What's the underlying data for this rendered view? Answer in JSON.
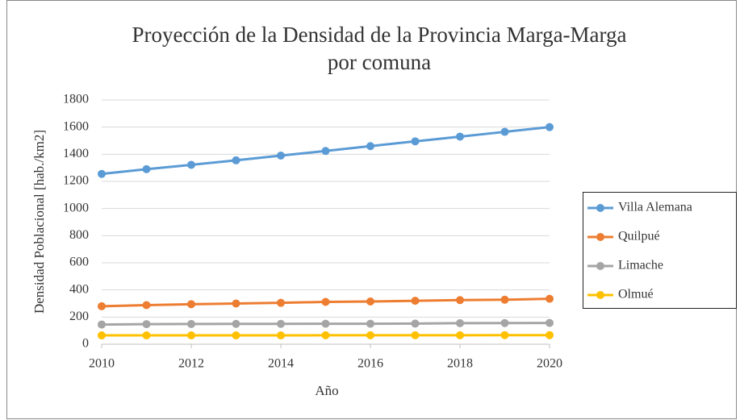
{
  "chart_data": {
    "type": "line",
    "title": [
      "Proyección de la Densidad de la Provincia Marga-Marga",
      "por comuna"
    ],
    "x_label": "Año",
    "y_label": "Densidad Poblacional [hab./km2]",
    "x": [
      2010,
      2011,
      2012,
      2013,
      2014,
      2015,
      2016,
      2017,
      2018,
      2019,
      2020
    ],
    "xlim": [
      2010,
      2020
    ],
    "xticks": [
      2010,
      2012,
      2014,
      2016,
      2018,
      2020
    ],
    "ylim": [
      0,
      1800
    ],
    "yticks": [
      0,
      200,
      400,
      600,
      800,
      1000,
      1200,
      1400,
      1600,
      1800
    ],
    "grid": true,
    "legend": "right",
    "series": [
      {
        "name": "Villa Alemana",
        "color": "#5b9bd5",
        "values": [
          1255,
          1290,
          1322,
          1355,
          1390,
          1424,
          1460,
          1495,
          1530,
          1565,
          1600
        ]
      },
      {
        "name": "Quilpué",
        "color": "#ed7d31",
        "values": [
          280,
          288,
          295,
          300,
          305,
          312,
          315,
          320,
          325,
          328,
          335
        ]
      },
      {
        "name": "Limache",
        "color": "#a5a5a5",
        "values": [
          145,
          148,
          149,
          150,
          150,
          151,
          151,
          152,
          155,
          156,
          157
        ]
      },
      {
        "name": "Olmué",
        "color": "#ffc000",
        "values": [
          65,
          65,
          65,
          65,
          65,
          66,
          66,
          66,
          66,
          67,
          67
        ]
      }
    ]
  }
}
